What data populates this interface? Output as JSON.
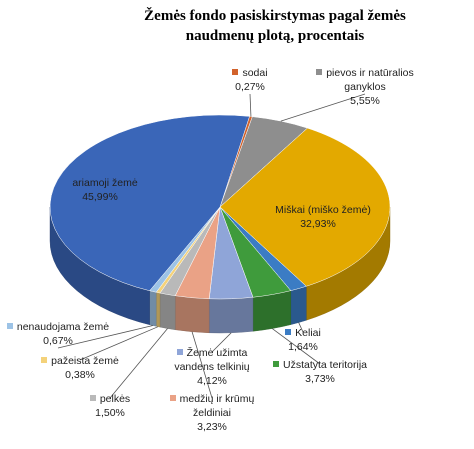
{
  "chart_data": {
    "type": "pie",
    "title": "Žemės fondo pasiskirstymas pagal žemės naudmenų plotą, procentais",
    "categories": [
      "sodai",
      "pievos ir natūralios ganyklos",
      "Miškai (miško žemė)",
      "Keliai",
      "Užstatyta teritorija",
      "Žemė užimta vandens telkinių",
      "medžių ir krūmų želdiniai",
      "pelkės",
      "pažeista žemė",
      "nenaudojama žemė",
      "ariamoji žemė"
    ],
    "values": [
      0.27,
      5.55,
      32.93,
      1.64,
      3.73,
      4.12,
      3.23,
      1.5,
      0.38,
      0.67,
      45.99
    ],
    "value_labels": [
      "0,27%",
      "5,55%",
      "32,93%",
      "1,64%",
      "3,73%",
      "4,12%",
      "3,23%",
      "1,50%",
      "0,38%",
      "0,67%",
      "45,99%"
    ],
    "colors": [
      "#d2622b",
      "#8e8e8e",
      "#e3a900",
      "#3b7cc4",
      "#3f9b3c",
      "#8fa5d8",
      "#eaa286",
      "#b9b9b9",
      "#f4d27a",
      "#9dc3e6",
      "#3a66b8"
    ]
  }
}
